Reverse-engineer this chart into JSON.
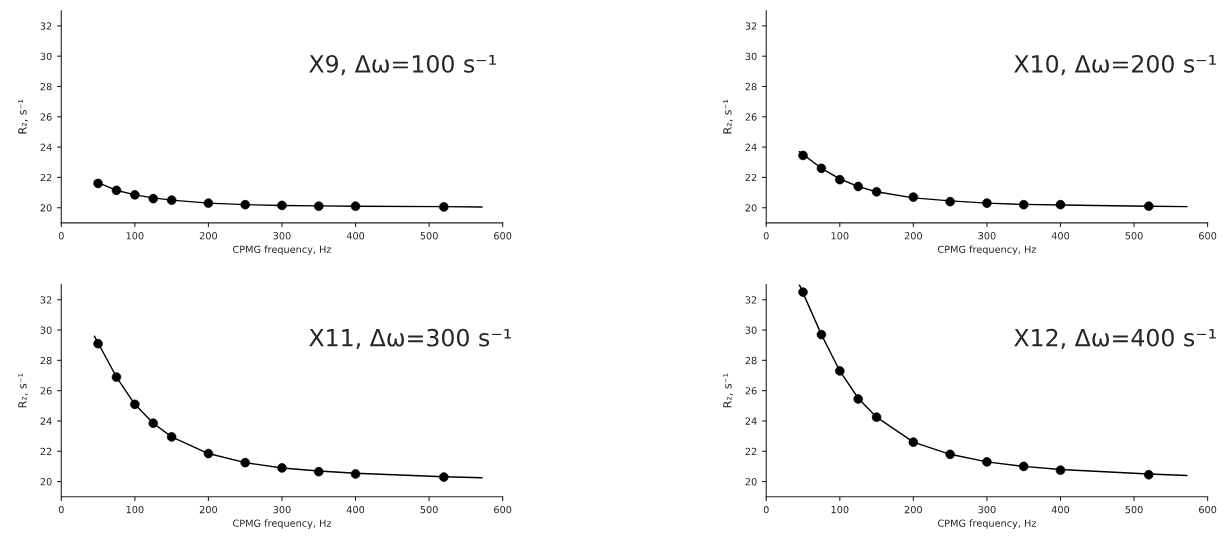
{
  "chart_data": [
    {
      "type": "scatter",
      "xlabel": "CPMG frequency, Hz",
      "ylabel": "R₂, s⁻¹",
      "annotations": [
        "X9, Δω=100 s⁻¹"
      ],
      "xlim": [
        0,
        600
      ],
      "ylim": [
        19,
        33
      ],
      "xticks": [
        0,
        100,
        200,
        300,
        400,
        500,
        600
      ],
      "yticks": [
        20,
        22,
        24,
        26,
        28,
        30,
        32
      ],
      "x": [
        50,
        75,
        100,
        125,
        150,
        200,
        250,
        300,
        350,
        400,
        520
      ],
      "series": [
        {
          "color": "#000000",
          "marker": "circle",
          "values": [
            21.6,
            21.15,
            20.85,
            20.6,
            20.5,
            20.3,
            20.2,
            20.15,
            20.1,
            20.1,
            20.05
          ]
        },
        {
          "type": "line",
          "color": "#000000",
          "x": [
            45,
            75,
            100,
            125,
            150,
            200,
            250,
            300,
            350,
            400,
            520,
            572
          ],
          "values": [
            21.75,
            21.15,
            20.85,
            20.65,
            20.5,
            20.3,
            20.2,
            20.15,
            20.12,
            20.1,
            20.07,
            20.05
          ]
        }
      ]
    },
    {
      "type": "scatter",
      "xlabel": "CPMG frequency, Hz",
      "ylabel": "R₂, s⁻¹",
      "annotations": [
        "X10, Δω=200 s⁻¹"
      ],
      "xlim": [
        0,
        600
      ],
      "ylim": [
        19,
        33
      ],
      "xticks": [
        0,
        100,
        200,
        300,
        400,
        500,
        600
      ],
      "yticks": [
        20,
        22,
        24,
        26,
        28,
        30,
        32
      ],
      "x": [
        50,
        75,
        100,
        125,
        150,
        200,
        250,
        300,
        350,
        400,
        520
      ],
      "series": [
        {
          "color": "#000000",
          "marker": "circle",
          "values": [
            23.45,
            22.6,
            21.85,
            21.4,
            21.05,
            20.7,
            20.4,
            20.3,
            20.2,
            20.2,
            20.1
          ]
        },
        {
          "type": "line",
          "color": "#000000",
          "x": [
            45,
            75,
            100,
            125,
            150,
            200,
            250,
            300,
            350,
            400,
            520,
            572
          ],
          "values": [
            23.7,
            22.6,
            21.9,
            21.4,
            21.05,
            20.65,
            20.45,
            20.3,
            20.22,
            20.18,
            20.1,
            20.07
          ]
        }
      ]
    },
    {
      "type": "scatter",
      "xlabel": "CPMG frequency, Hz",
      "ylabel": "R₂, s⁻¹",
      "annotations": [
        "X11, Δω=300 s⁻¹"
      ],
      "xlim": [
        0,
        600
      ],
      "ylim": [
        19,
        33
      ],
      "xticks": [
        0,
        100,
        200,
        300,
        400,
        500,
        600
      ],
      "yticks": [
        20,
        22,
        24,
        26,
        28,
        30,
        32
      ],
      "x": [
        50,
        75,
        100,
        125,
        150,
        200,
        250,
        300,
        350,
        400,
        520
      ],
      "series": [
        {
          "color": "#000000",
          "marker": "circle",
          "values": [
            29.1,
            26.9,
            25.1,
            23.85,
            22.95,
            21.85,
            21.25,
            20.9,
            20.65,
            20.5,
            20.3
          ]
        },
        {
          "type": "line",
          "color": "#000000",
          "x": [
            45,
            75,
            100,
            125,
            150,
            200,
            250,
            300,
            350,
            400,
            520,
            572
          ],
          "values": [
            29.6,
            26.9,
            25.1,
            23.85,
            22.95,
            21.85,
            21.25,
            20.9,
            20.7,
            20.55,
            20.32,
            20.25
          ]
        }
      ]
    },
    {
      "type": "scatter",
      "xlabel": "CPMG frequency, Hz",
      "ylabel": "R₂, s⁻¹",
      "annotations": [
        "X12, Δω=400 s⁻¹"
      ],
      "xlim": [
        0,
        600
      ],
      "ylim": [
        19,
        33
      ],
      "xticks": [
        0,
        100,
        200,
        300,
        400,
        500,
        600
      ],
      "yticks": [
        20,
        22,
        24,
        26,
        28,
        30,
        32
      ],
      "x": [
        50,
        75,
        100,
        125,
        150,
        200,
        250,
        300,
        350,
        400,
        520
      ],
      "series": [
        {
          "color": "#000000",
          "marker": "circle",
          "values": [
            32.5,
            29.7,
            27.3,
            25.45,
            24.25,
            22.6,
            21.8,
            21.3,
            21.0,
            20.75,
            20.45
          ]
        },
        {
          "type": "line",
          "color": "#000000",
          "x": [
            45,
            75,
            100,
            125,
            150,
            200,
            250,
            300,
            350,
            400,
            520,
            572
          ],
          "values": [
            33.0,
            29.7,
            27.3,
            25.5,
            24.25,
            22.6,
            21.8,
            21.3,
            21.0,
            20.8,
            20.5,
            20.4
          ]
        }
      ]
    }
  ]
}
